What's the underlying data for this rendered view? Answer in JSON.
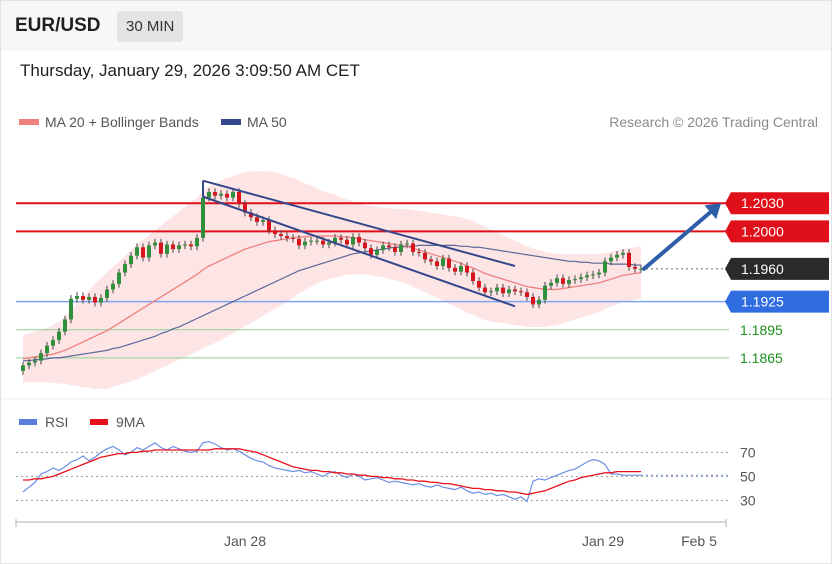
{
  "header": {
    "symbol": "EUR/USD",
    "interval": "30 MIN",
    "datetime": "Thursday, January 29, 2026 3:09:50 AM CET"
  },
  "chart_data": {
    "type": "candlestick",
    "legend": [
      {
        "name": "MA 20 + Bollinger Bands",
        "color": "#f08080"
      },
      {
        "name": "MA 50",
        "color": "#34478a"
      }
    ],
    "credit": "Research © 2026 Trading Central",
    "x_ticks": [
      "Jan 28",
      "Jan 29",
      "Feb 5"
    ],
    "y_range": [
      1.1835,
      1.2075
    ],
    "price_levels": [
      {
        "value": 1.203,
        "label": "1.2030",
        "kind": "resistance",
        "color": "#e0101a"
      },
      {
        "value": 1.2,
        "label": "1.2000",
        "kind": "resistance",
        "color": "#e0101a"
      },
      {
        "value": 1.196,
        "label": "1.1960",
        "kind": "current",
        "color": "#2a2a2a"
      },
      {
        "value": 1.1925,
        "label": "1.1925",
        "kind": "pivot",
        "color": "#2f6de1"
      },
      {
        "value": 1.1895,
        "label": "1.1895",
        "kind": "support",
        "color": "#22a822"
      },
      {
        "value": 1.1865,
        "label": "1.1865",
        "kind": "support",
        "color": "#22a822"
      }
    ],
    "close": [
      1.1857,
      1.186,
      1.1862,
      1.187,
      1.1878,
      1.1884,
      1.1893,
      1.1906,
      1.1928,
      1.1931,
      1.1927,
      1.193,
      1.1924,
      1.1929,
      1.1938,
      1.1944,
      1.1956,
      1.1965,
      1.1974,
      1.1983,
      1.1972,
      1.1985,
      1.1988,
      1.1976,
      1.1986,
      1.1981,
      1.1985,
      1.1986,
      1.1984,
      1.1993,
      1.2036,
      1.2042,
      1.2038,
      1.204,
      1.2036,
      1.2042,
      1.2029,
      1.202,
      1.2015,
      1.201,
      1.2012,
      1.2001,
      1.1997,
      1.1995,
      1.1993,
      1.1992,
      1.1985,
      1.1989,
      1.199,
      1.199,
      1.1986,
      1.1988,
      1.1993,
      1.1991,
      1.1986,
      1.1994,
      1.1988,
      1.1982,
      1.1975,
      1.198,
      1.1985,
      1.1983,
      1.1978,
      1.1986,
      1.1987,
      1.1978,
      1.1977,
      1.197,
      1.1968,
      1.1963,
      1.1971,
      1.1961,
      1.1957,
      1.1963,
      1.1956,
      1.1947,
      1.194,
      1.1935,
      1.1936,
      1.194,
      1.1934,
      1.1938,
      1.1936,
      1.1935,
      1.193,
      1.1922,
      1.1927,
      1.1942,
      1.1945,
      1.195,
      1.1944,
      1.1948,
      1.1949,
      1.1951,
      1.1953,
      1.1954,
      1.1956,
      1.1968,
      1.1972,
      1.1975,
      1.1977,
      1.1962,
      1.196,
      1.196
    ],
    "ma20": [
      1.1864,
      1.1865,
      1.1866,
      1.1867,
      1.1868,
      1.1869,
      1.1871,
      1.1873,
      1.1876,
      1.1879,
      1.1882,
      1.1885,
      1.1888,
      1.1891,
      1.1894,
      1.1898,
      1.1902,
      1.1906,
      1.191,
      1.1914,
      1.1918,
      1.1922,
      1.1926,
      1.193,
      1.1934,
      1.1938,
      1.1942,
      1.1946,
      1.195,
      1.1954,
      1.1959,
      1.1963,
      1.1966,
      1.1969,
      1.1972,
      1.1975,
      1.1978,
      1.1981,
      1.1983,
      1.1985,
      1.1987,
      1.1989,
      1.199,
      1.1991,
      1.1992,
      1.1993,
      1.1994,
      1.1994,
      1.1995,
      1.1995,
      1.1995,
      1.1995,
      1.1995,
      1.1994,
      1.1994,
      1.1993,
      1.1992,
      1.1991,
      1.199,
      1.1989,
      1.1988,
      1.1987,
      1.1986,
      1.1985,
      1.1984,
      1.1982,
      1.198,
      1.1978,
      1.1976,
      1.1974,
      1.1972,
      1.197,
      1.1968,
      1.1966,
      1.1963,
      1.1961,
      1.1958,
      1.1955,
      1.1953,
      1.1951,
      1.1949,
      1.1947,
      1.1945,
      1.1943,
      1.1941,
      1.194,
      1.1939,
      1.1938,
      1.1938,
      1.1938,
      1.1939,
      1.194,
      1.1941,
      1.1942,
      1.1943,
      1.1944,
      1.1945,
      1.1947,
      1.1949,
      1.1951,
      1.1953,
      1.1954,
      1.1955,
      1.1956
    ],
    "ma50": [
      1.1862,
      1.1862,
      1.1863,
      1.1863,
      1.1864,
      1.1865,
      1.1865,
      1.1866,
      1.1867,
      1.1868,
      1.1869,
      1.187,
      1.1871,
      1.1872,
      1.1873,
      1.1875,
      1.1876,
      1.1878,
      1.188,
      1.1882,
      1.1884,
      1.1886,
      1.1888,
      1.1891,
      1.1893,
      1.1896,
      1.1898,
      1.1901,
      1.1904,
      1.1907,
      1.191,
      1.1913,
      1.1916,
      1.1919,
      1.1922,
      1.1925,
      1.1928,
      1.1931,
      1.1934,
      1.1937,
      1.194,
      1.1943,
      1.1946,
      1.1949,
      1.1952,
      1.1955,
      1.1958,
      1.196,
      1.1962,
      1.1964,
      1.1966,
      1.1968,
      1.197,
      1.1972,
      1.1974,
      1.1976,
      1.1977,
      1.1978,
      1.1979,
      1.198,
      1.1981,
      1.1982,
      1.1983,
      1.1983,
      1.1984,
      1.1984,
      1.1985,
      1.1985,
      1.1985,
      1.1985,
      1.1985,
      1.1985,
      1.1985,
      1.1984,
      1.1984,
      1.1983,
      1.1983,
      1.1982,
      1.1981,
      1.198,
      1.1979,
      1.1978,
      1.1977,
      1.1976,
      1.1975,
      1.1974,
      1.1973,
      1.1972,
      1.1971,
      1.197,
      1.1969,
      1.1968,
      1.1968,
      1.1967,
      1.1967,
      1.1966,
      1.1966,
      1.1966,
      1.1965,
      1.1965,
      1.1965,
      1.1965,
      1.1964,
      1.1964
    ],
    "bb_width": [
      0.0025,
      0.0026,
      0.0027,
      0.0028,
      0.0029,
      0.0031,
      0.0033,
      0.0036,
      0.004,
      0.0044,
      0.0048,
      0.0052,
      0.0056,
      0.0059,
      0.0062,
      0.0064,
      0.0066,
      0.0068,
      0.007,
      0.0072,
      0.0073,
      0.0074,
      0.0075,
      0.0076,
      0.0077,
      0.0078,
      0.0079,
      0.008,
      0.0081,
      0.0082,
      0.0084,
      0.0085,
      0.0085,
      0.0085,
      0.0085,
      0.0084,
      0.0083,
      0.0082,
      0.0081,
      0.0079,
      0.0077,
      0.0075,
      0.0073,
      0.007,
      0.0067,
      0.0064,
      0.006,
      0.0057,
      0.0054,
      0.0051,
      0.0048,
      0.0046,
      0.0044,
      0.0042,
      0.004,
      0.0039,
      0.0038,
      0.0037,
      0.0037,
      0.0037,
      0.0037,
      0.0038,
      0.0038,
      0.0039,
      0.004,
      0.0041,
      0.0042,
      0.0043,
      0.0044,
      0.0045,
      0.0046,
      0.0047,
      0.0048,
      0.0049,
      0.005,
      0.005,
      0.005,
      0.005,
      0.0049,
      0.0048,
      0.0047,
      0.0046,
      0.0045,
      0.0044,
      0.0043,
      0.0042,
      0.0041,
      0.004,
      0.0039,
      0.0038,
      0.0037,
      0.0036,
      0.0035,
      0.0034,
      0.0033,
      0.0032,
      0.0031,
      0.003,
      0.0029,
      0.0029,
      0.0028,
      0.0028,
      0.0028,
      0.0028
    ],
    "channel": {
      "upper": [
        [
          1.2054,
          30
        ],
        [
          1.1963,
          82
        ]
      ],
      "lower": [
        [
          1.2037,
          30
        ],
        [
          1.192,
          82
        ]
      ]
    },
    "forecast_arrow": {
      "from": 1.196,
      "to": 1.203
    },
    "rsi": {
      "legend": [
        {
          "name": "RSI",
          "color": "#5b7fde"
        },
        {
          "name": "9MA",
          "color": "#e8101a"
        }
      ],
      "levels": [
        70,
        50,
        30
      ],
      "y_range": [
        22,
        82
      ],
      "rsi": [
        37,
        41,
        45,
        52,
        54,
        57,
        55,
        58,
        62,
        64,
        67,
        63,
        66,
        70,
        73,
        75,
        72,
        68,
        70,
        74,
        72,
        75,
        78,
        74,
        72,
        75,
        73,
        71,
        70,
        71,
        78,
        79,
        77,
        74,
        72,
        73,
        71,
        68,
        65,
        63,
        62,
        59,
        57,
        56,
        55,
        54,
        55,
        53,
        54,
        52,
        50,
        53,
        54,
        51,
        49,
        52,
        50,
        47,
        48,
        49,
        47,
        45,
        46,
        45,
        44,
        43,
        44,
        42,
        41,
        43,
        41,
        40,
        39,
        41,
        38,
        36,
        37,
        35,
        36,
        34,
        35,
        33,
        31,
        33,
        29,
        46,
        48,
        47,
        49,
        51,
        53,
        55,
        56,
        59,
        62,
        64,
        63,
        60,
        52,
        52,
        51,
        51,
        51,
        51
      ],
      "ma9": [
        47,
        47,
        48,
        48,
        49,
        50,
        52,
        54,
        56,
        58,
        60,
        62,
        64,
        66,
        67,
        68,
        69,
        69,
        70,
        70,
        71,
        71,
        72,
        72,
        72,
        72,
        72,
        72,
        72,
        72,
        72,
        72,
        73,
        73,
        73,
        73,
        73,
        72,
        71,
        70,
        68,
        66,
        64,
        62,
        60,
        58,
        57,
        56,
        55,
        55,
        54,
        54,
        53,
        53,
        52,
        52,
        51,
        51,
        50,
        50,
        49,
        49,
        48,
        48,
        47,
        47,
        46,
        46,
        45,
        45,
        44,
        44,
        43,
        42,
        41,
        40,
        40,
        39,
        39,
        38,
        38,
        37,
        37,
        36,
        35,
        36,
        37,
        38,
        40,
        42,
        44,
        46,
        47,
        49,
        50,
        51,
        52,
        53,
        53,
        54,
        54,
        54,
        54,
        54
      ]
    }
  }
}
